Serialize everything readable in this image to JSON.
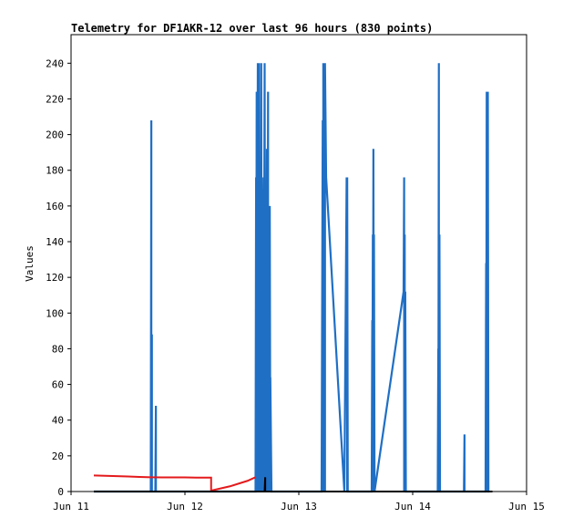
{
  "chart_data": {
    "type": "line",
    "title": "Telemetry for DF1AKR-12 over last 96 hours (830 points)",
    "xlabel": "",
    "ylabel": "Values",
    "xlim": [
      0,
      4
    ],
    "ylim": [
      0,
      256
    ],
    "x_ticks": [
      {
        "x": 0,
        "label": "Jun 11"
      },
      {
        "x": 1,
        "label": "Jun 12"
      },
      {
        "x": 2,
        "label": "Jun 13"
      },
      {
        "x": 3,
        "label": "Jun 14"
      },
      {
        "x": 4,
        "label": "Jun 15"
      }
    ],
    "y_ticks": [
      0,
      20,
      40,
      60,
      80,
      100,
      120,
      140,
      160,
      180,
      200,
      220,
      240
    ],
    "grid": false,
    "legend": "none",
    "colors": {
      "series1": "#1f6fc5",
      "series2": "#e41a1c",
      "series3": "#000000"
    },
    "series": [
      {
        "color": "#1f6fc5",
        "x": [
          0.2,
          0.7,
          0.705,
          0.705,
          0.71,
          0.71,
          0.715,
          0.74,
          0.745,
          0.745,
          0.75,
          1.62,
          1.625,
          1.625,
          1.63,
          1.63,
          1.64,
          1.645,
          1.65,
          1.65,
          1.66,
          1.66,
          1.67,
          1.675,
          1.68,
          1.69,
          1.69,
          1.7,
          1.705,
          1.71,
          1.71,
          1.72,
          1.725,
          1.73,
          1.73,
          1.735,
          1.74,
          1.74,
          1.745,
          1.75,
          1.75,
          1.76,
          2.2,
          2.21,
          2.215,
          2.215,
          2.22,
          2.22,
          2.225,
          2.23,
          2.23,
          2.24,
          2.4,
          2.42,
          2.425,
          2.425,
          2.43,
          2.64,
          2.645,
          2.645,
          2.65,
          2.65,
          2.655,
          2.66,
          2.66,
          2.665,
          2.92,
          2.925,
          2.925,
          2.93,
          2.93,
          2.935,
          2.94,
          2.94,
          3.22,
          3.225,
          3.225,
          3.23,
          3.23,
          3.235,
          3.24,
          3.24,
          3.45,
          3.455,
          3.455,
          3.46,
          3.64,
          3.645,
          3.645,
          3.65,
          3.65,
          3.655,
          3.66,
          3.66,
          3.665,
          3.67
        ],
        "y": [
          0,
          0,
          208,
          0,
          88,
          0,
          0,
          0,
          48,
          0,
          0,
          0,
          176,
          0,
          224,
          0,
          240,
          0,
          240,
          0,
          160,
          0,
          240,
          0,
          96,
          176,
          0,
          240,
          0,
          128,
          0,
          192,
          0,
          224,
          0,
          112,
          80,
          0,
          160,
          0,
          64,
          0,
          0,
          208,
          0,
          240,
          0,
          176,
          160,
          0,
          240,
          176,
          0,
          176,
          0,
          176,
          0,
          0,
          96,
          0,
          144,
          0,
          192,
          0,
          144,
          0,
          112,
          176,
          0,
          144,
          0,
          112,
          0,
          0,
          0,
          80,
          0,
          240,
          0,
          144,
          0,
          0,
          0,
          32,
          0,
          0,
          0,
          128,
          0,
          224,
          0,
          224,
          0,
          224,
          0,
          0
        ]
      },
      {
        "color": "#e41a1c",
        "x": [
          0.2,
          0.3,
          0.4,
          0.5,
          0.6,
          0.7,
          0.8,
          0.9,
          1.0,
          1.1,
          1.2,
          1.23,
          1.23,
          1.4,
          1.55,
          1.62
        ],
        "y": [
          9,
          8.8,
          8.6,
          8.4,
          8.2,
          8,
          7.9,
          7.9,
          7.9,
          7.8,
          7.8,
          7.8,
          0.5,
          3,
          6,
          8
        ]
      },
      {
        "color": "#000000",
        "x": [
          0.2,
          1.7,
          1.705,
          1.705,
          1.71,
          3.7
        ],
        "y": [
          0,
          0,
          8,
          0,
          0,
          0
        ]
      }
    ]
  }
}
